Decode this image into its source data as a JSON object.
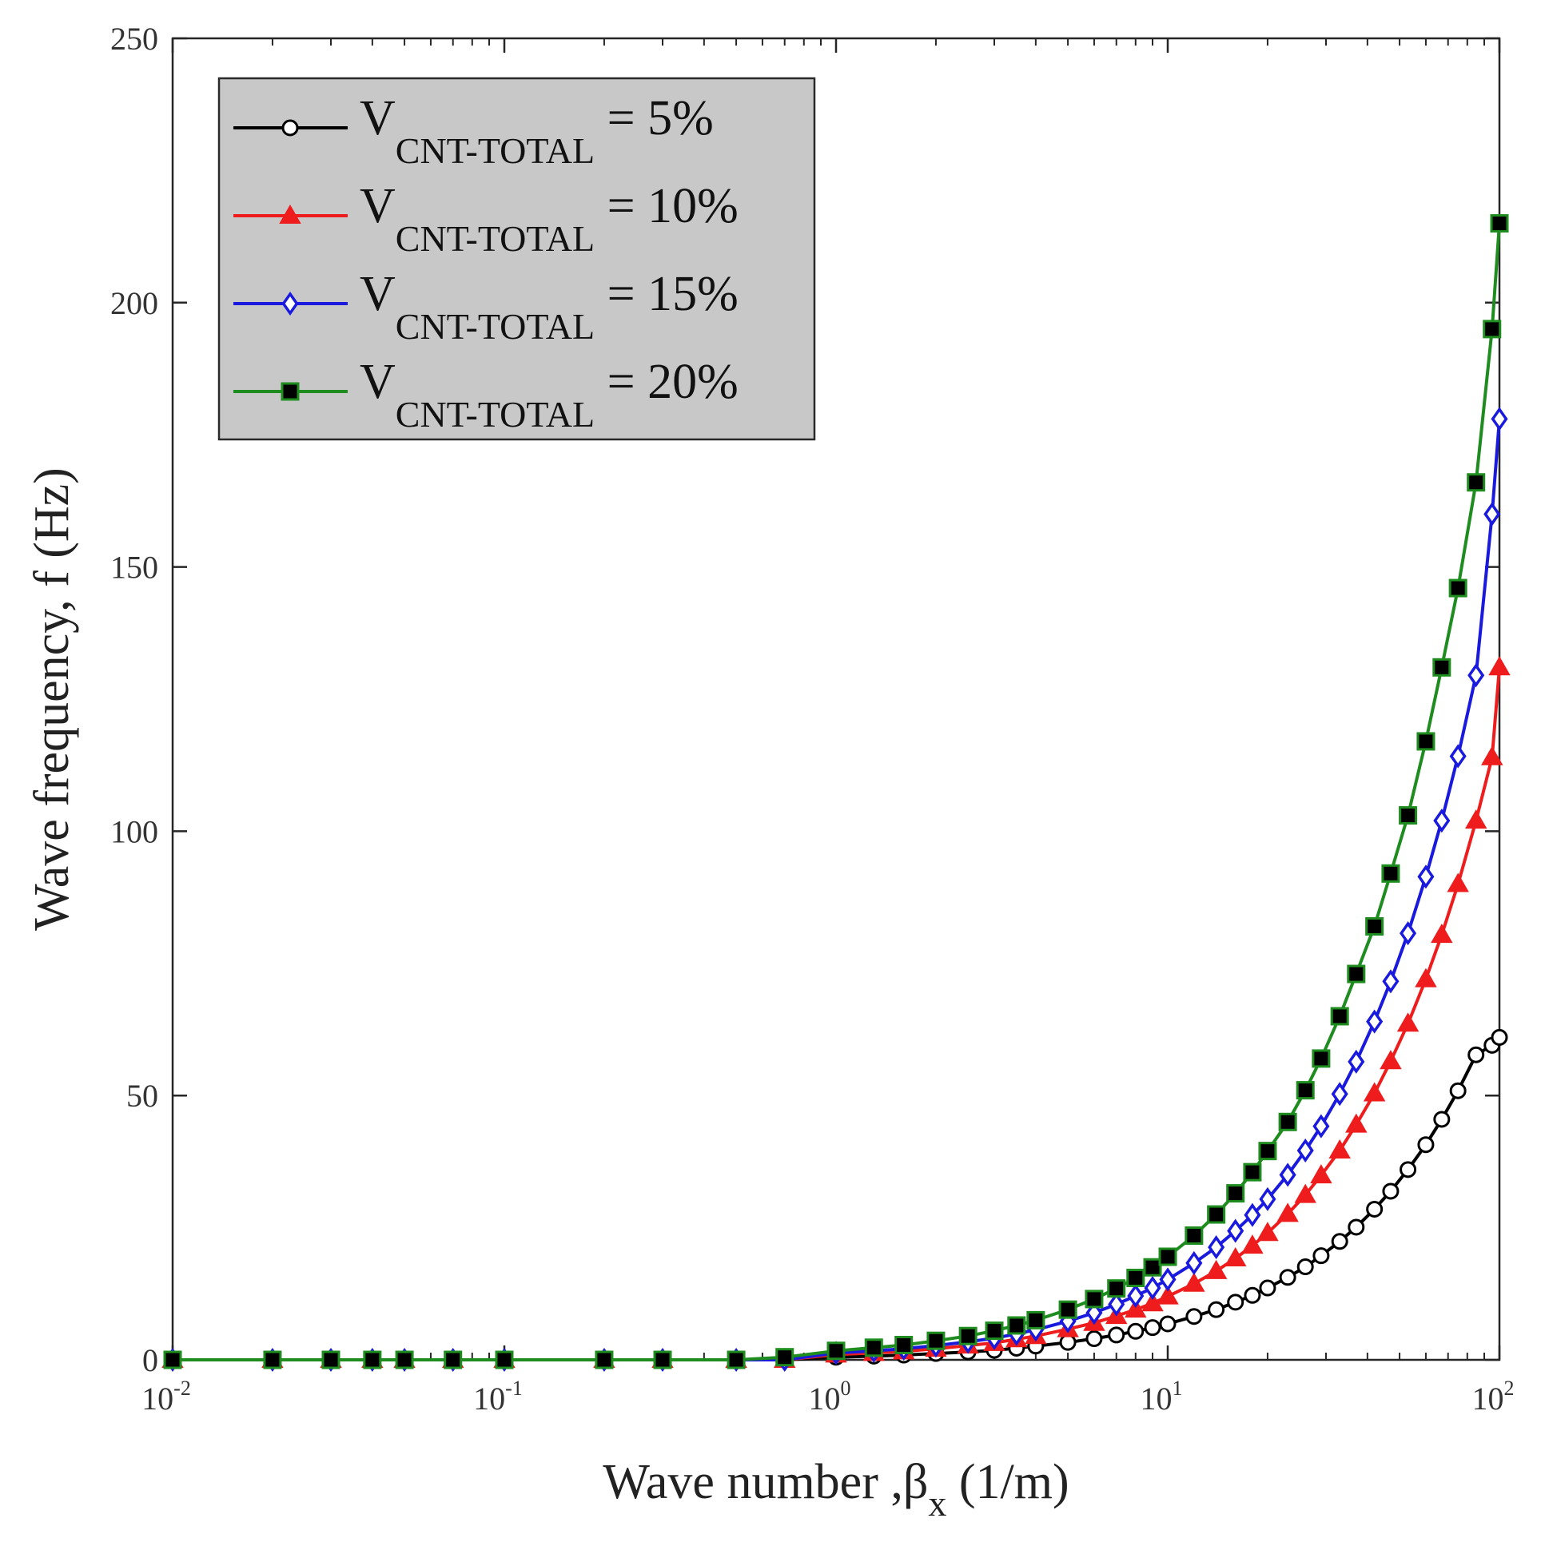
{
  "chart_data": {
    "type": "line",
    "xscale": "log",
    "xlim": [
      0.01,
      100
    ],
    "ylim": [
      0,
      250
    ],
    "xlabel": "Wave number ,β",
    "xlabel_sub": "x",
    "xlabel_unit": " (1/m)",
    "ylabel": "Wave frequency, f (Hz)",
    "x_ticks": [
      {
        "value": 0.01,
        "base": "10",
        "exp": "-2"
      },
      {
        "value": 0.1,
        "base": "10",
        "exp": "-1"
      },
      {
        "value": 1,
        "base": "10",
        "exp": "0"
      },
      {
        "value": 10,
        "base": "10",
        "exp": "1"
      },
      {
        "value": 100,
        "base": "10",
        "exp": "2"
      }
    ],
    "y_ticks": [
      {
        "value": 0,
        "label": "0"
      },
      {
        "value": 50,
        "label": "50"
      },
      {
        "value": 100,
        "label": "100"
      },
      {
        "value": 150,
        "label": "150"
      },
      {
        "value": 200,
        "label": "200"
      },
      {
        "value": 250,
        "label": "250"
      }
    ],
    "grid": false,
    "legend_position": "top-left",
    "series": [
      {
        "name": "V",
        "name_sub": "CNT-TOTAL",
        "name_suffix": " = 5%",
        "color": "#000000",
        "marker": "circle",
        "marker_fill": "none",
        "x": [
          0.01,
          0.02,
          0.03,
          0.04,
          0.05,
          0.07,
          0.1,
          0.2,
          0.3,
          0.5,
          0.7,
          1,
          1.3,
          1.6,
          2,
          2.5,
          3,
          3.5,
          4,
          5,
          6,
          7,
          8,
          9,
          10,
          12,
          14,
          16,
          18,
          20,
          23,
          26,
          29,
          33,
          37,
          42,
          47,
          53,
          60,
          67,
          75,
          85,
          95,
          100
        ],
        "y": [
          0,
          0,
          0,
          0,
          0,
          0,
          0,
          0,
          0,
          0,
          0,
          0.5,
          0.7,
          0.9,
          1.2,
          1.5,
          1.8,
          2.2,
          2.6,
          3.3,
          4.0,
          4.7,
          5.4,
          6.1,
          6.8,
          8.2,
          9.5,
          10.9,
          12.2,
          13.6,
          15.6,
          17.6,
          19.7,
          22.4,
          25.1,
          28.5,
          31.9,
          36.0,
          40.7,
          45.5,
          50.9,
          57.7,
          59.5,
          61
        ]
      },
      {
        "name": "V",
        "name_sub": "CNT-TOTAL",
        "name_suffix": " = 10%",
        "color": "#ee1c1c",
        "marker": "triangle",
        "marker_fill": "#ee1c1c",
        "x": [
          0.01,
          0.02,
          0.03,
          0.04,
          0.05,
          0.07,
          0.1,
          0.2,
          0.3,
          0.5,
          0.7,
          1,
          1.3,
          1.6,
          2,
          2.5,
          3,
          3.5,
          4,
          5,
          6,
          7,
          8,
          9,
          10,
          12,
          14,
          16,
          18,
          20,
          23,
          26,
          29,
          33,
          37,
          42,
          47,
          53,
          60,
          67,
          75,
          85,
          95,
          100
        ],
        "y": [
          0,
          0,
          0,
          0,
          0,
          0,
          0,
          0,
          0,
          0,
          0,
          1.0,
          1.3,
          1.6,
          2.1,
          2.7,
          3.2,
          3.9,
          4.5,
          5.8,
          7.0,
          8.3,
          9.5,
          10.7,
          12.0,
          14.4,
          16.8,
          19.2,
          21.6,
          24.0,
          27.6,
          31.2,
          34.9,
          39.6,
          44.5,
          50.4,
          56.5,
          63.6,
          72.0,
          80.4,
          90.0,
          102.0,
          114.0,
          131
        ]
      },
      {
        "name": "V",
        "name_sub": "CNT-TOTAL",
        "name_suffix": " = 15%",
        "color": "#1a1adf",
        "marker": "diamond",
        "marker_fill": "#ffffff",
        "x": [
          0.01,
          0.02,
          0.03,
          0.04,
          0.05,
          0.07,
          0.1,
          0.2,
          0.3,
          0.5,
          0.7,
          1,
          1.3,
          1.6,
          2,
          2.5,
          3,
          3.5,
          4,
          5,
          6,
          7,
          8,
          9,
          10,
          12,
          14,
          16,
          18,
          20,
          23,
          26,
          29,
          33,
          37,
          42,
          47,
          53,
          60,
          67,
          75,
          85,
          95,
          100
        ],
        "y": [
          0,
          0,
          0,
          0,
          0,
          0,
          0,
          0,
          0,
          0,
          0,
          1.3,
          1.7,
          2.1,
          2.7,
          3.4,
          4.1,
          4.9,
          5.7,
          7.3,
          8.9,
          10.5,
          12.1,
          13.6,
          15.2,
          18.3,
          21.3,
          24.4,
          27.4,
          30.4,
          35.0,
          39.6,
          44.2,
          50.3,
          56.4,
          64.0,
          71.6,
          80.7,
          91.4,
          102.0,
          114.2,
          129.5,
          160.0,
          178
        ]
      },
      {
        "name": "V",
        "name_sub": "CNT-TOTAL",
        "name_suffix": " = 20%",
        "color": "#1e8c1e",
        "marker": "square",
        "marker_fill": "#000000",
        "x": [
          0.01,
          0.02,
          0.03,
          0.04,
          0.05,
          0.07,
          0.1,
          0.2,
          0.3,
          0.5,
          0.7,
          1,
          1.3,
          1.6,
          2,
          2.5,
          3,
          3.5,
          4,
          5,
          6,
          7,
          8,
          9,
          10,
          12,
          14,
          16,
          18,
          20,
          23,
          26,
          29,
          33,
          37,
          42,
          47,
          53,
          60,
          67,
          75,
          85,
          95,
          100
        ],
        "y": [
          0,
          0,
          0,
          0,
          0,
          0,
          0,
          0,
          0,
          0,
          0.5,
          1.7,
          2.3,
          2.8,
          3.6,
          4.5,
          5.5,
          6.5,
          7.5,
          9.5,
          11.5,
          13.5,
          15.5,
          17.5,
          19.5,
          23.5,
          27.5,
          31.5,
          35.5,
          39.5,
          45.0,
          51.0,
          57.0,
          65.0,
          73.0,
          82.0,
          92.0,
          103.0,
          117.0,
          131.0,
          146.0,
          166.0,
          195.0,
          215
        ]
      }
    ]
  }
}
